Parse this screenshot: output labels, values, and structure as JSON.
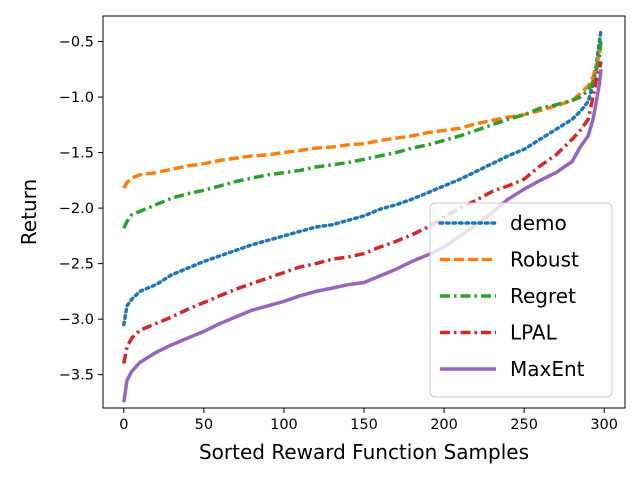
{
  "chart_data": {
    "type": "line",
    "xlabel": "Sorted Reward Function Samples",
    "ylabel": "Return",
    "xlim": [
      -13,
      313
    ],
    "ylim": [
      -3.8,
      -0.27
    ],
    "xticks": [
      0,
      50,
      100,
      150,
      200,
      250,
      300
    ],
    "yticks": [
      -3.5,
      -3.0,
      -2.5,
      -2.0,
      -1.5,
      -1.0,
      -0.5
    ],
    "ytick_labels": [
      "−3.5",
      "−3.0",
      "−2.5",
      "−2.0",
      "−1.5",
      "−1.0",
      "−0.5"
    ],
    "xtick_labels": [
      "0",
      "50",
      "100",
      "150",
      "200",
      "250",
      "300"
    ],
    "grid": false,
    "legend_position": "lower-right",
    "series": [
      {
        "name": "demo",
        "color": "#1f77b4",
        "dash": "dotted",
        "x": [
          0,
          2,
          5,
          10,
          20,
          30,
          40,
          50,
          60,
          70,
          80,
          90,
          100,
          110,
          120,
          130,
          140,
          150,
          160,
          170,
          180,
          190,
          200,
          210,
          220,
          230,
          240,
          250,
          260,
          270,
          280,
          285,
          290,
          293,
          295,
          297,
          298
        ],
        "y": [
          -3.05,
          -2.88,
          -2.82,
          -2.75,
          -2.69,
          -2.6,
          -2.54,
          -2.48,
          -2.43,
          -2.38,
          -2.33,
          -2.29,
          -2.25,
          -2.21,
          -2.17,
          -2.15,
          -2.11,
          -2.07,
          -2.01,
          -1.97,
          -1.92,
          -1.86,
          -1.8,
          -1.74,
          -1.67,
          -1.6,
          -1.53,
          -1.47,
          -1.38,
          -1.29,
          -1.2,
          -1.13,
          -1.04,
          -0.88,
          -0.72,
          -0.5,
          -0.4
        ]
      },
      {
        "name": "Robust",
        "color": "#ff7f0e",
        "dash": "dashed",
        "x": [
          0,
          2,
          5,
          10,
          20,
          30,
          40,
          50,
          60,
          70,
          80,
          90,
          100,
          110,
          120,
          130,
          140,
          150,
          160,
          170,
          180,
          190,
          200,
          210,
          220,
          230,
          240,
          250,
          260,
          270,
          280,
          285,
          290,
          293,
          295,
          297,
          298
        ],
        "y": [
          -1.82,
          -1.77,
          -1.73,
          -1.7,
          -1.68,
          -1.65,
          -1.62,
          -1.6,
          -1.57,
          -1.55,
          -1.53,
          -1.52,
          -1.5,
          -1.48,
          -1.46,
          -1.45,
          -1.43,
          -1.42,
          -1.39,
          -1.37,
          -1.35,
          -1.32,
          -1.3,
          -1.28,
          -1.24,
          -1.21,
          -1.18,
          -1.16,
          -1.12,
          -1.08,
          -1.03,
          -0.97,
          -0.9,
          -0.82,
          -0.72,
          -0.62,
          -0.5
        ]
      },
      {
        "name": "Regret",
        "color": "#2ca02c",
        "dash": "dashdot",
        "x": [
          0,
          2,
          5,
          10,
          20,
          30,
          40,
          50,
          60,
          70,
          80,
          90,
          100,
          110,
          120,
          130,
          140,
          150,
          160,
          170,
          180,
          190,
          200,
          210,
          220,
          230,
          240,
          250,
          260,
          270,
          280,
          285,
          290,
          293,
          295,
          297,
          298
        ],
        "y": [
          -2.18,
          -2.12,
          -2.06,
          -2.03,
          -1.97,
          -1.91,
          -1.87,
          -1.84,
          -1.8,
          -1.76,
          -1.73,
          -1.7,
          -1.68,
          -1.66,
          -1.63,
          -1.61,
          -1.59,
          -1.56,
          -1.53,
          -1.5,
          -1.46,
          -1.43,
          -1.39,
          -1.35,
          -1.3,
          -1.25,
          -1.2,
          -1.16,
          -1.1,
          -1.07,
          -1.03,
          -1.0,
          -0.94,
          -0.86,
          -0.76,
          -0.64,
          -0.47
        ]
      },
      {
        "name": "LPAL",
        "color": "#d62728",
        "dash": "dashdot",
        "x": [
          0,
          2,
          5,
          10,
          20,
          30,
          40,
          50,
          60,
          70,
          80,
          90,
          100,
          110,
          120,
          130,
          140,
          150,
          160,
          170,
          180,
          190,
          200,
          210,
          220,
          230,
          240,
          250,
          260,
          270,
          280,
          285,
          290,
          293,
          295,
          297,
          298
        ],
        "y": [
          -3.4,
          -3.25,
          -3.17,
          -3.1,
          -3.04,
          -2.98,
          -2.91,
          -2.85,
          -2.79,
          -2.73,
          -2.68,
          -2.63,
          -2.58,
          -2.53,
          -2.5,
          -2.46,
          -2.44,
          -2.41,
          -2.35,
          -2.3,
          -2.24,
          -2.17,
          -2.08,
          -2.0,
          -1.93,
          -1.85,
          -1.8,
          -1.74,
          -1.62,
          -1.52,
          -1.38,
          -1.3,
          -1.2,
          -1.0,
          -0.85,
          -0.75,
          -0.68
        ]
      },
      {
        "name": "MaxEnt",
        "color": "#9467bd",
        "dash": "solid",
        "x": [
          0,
          2,
          5,
          10,
          20,
          30,
          40,
          50,
          60,
          70,
          80,
          90,
          100,
          110,
          120,
          130,
          140,
          150,
          160,
          170,
          180,
          190,
          200,
          210,
          220,
          230,
          240,
          250,
          260,
          270,
          280,
          285,
          290,
          293,
          295,
          297,
          298
        ],
        "y": [
          -3.75,
          -3.55,
          -3.47,
          -3.39,
          -3.3,
          -3.23,
          -3.17,
          -3.11,
          -3.04,
          -2.98,
          -2.92,
          -2.88,
          -2.84,
          -2.79,
          -2.75,
          -2.72,
          -2.69,
          -2.67,
          -2.61,
          -2.55,
          -2.48,
          -2.42,
          -2.35,
          -2.25,
          -2.15,
          -2.04,
          -1.92,
          -1.83,
          -1.75,
          -1.68,
          -1.58,
          -1.45,
          -1.35,
          -1.2,
          -1.05,
          -0.88,
          -0.75
        ]
      }
    ]
  }
}
